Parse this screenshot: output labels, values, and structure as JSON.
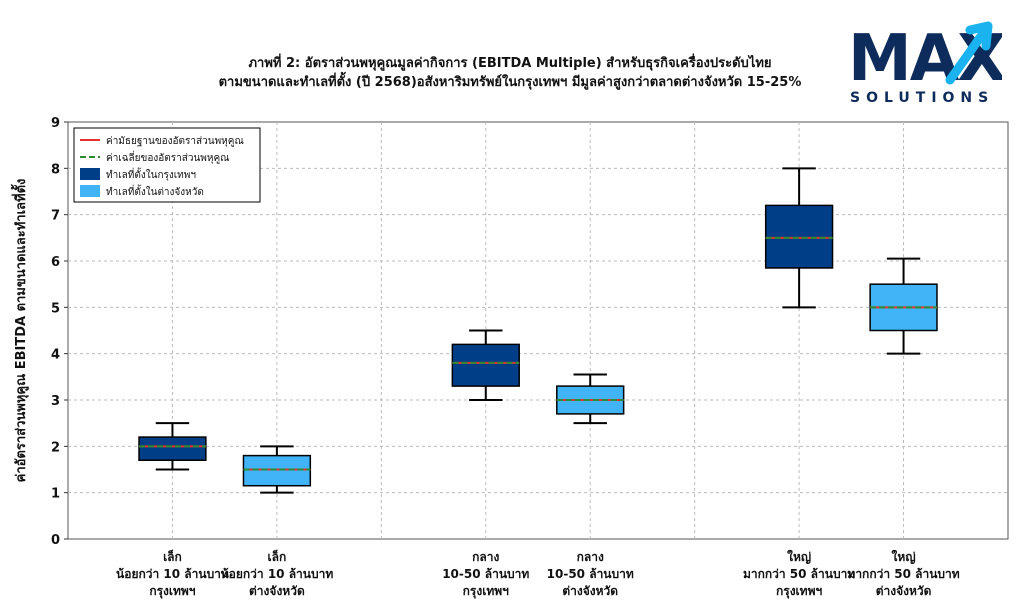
{
  "title_line1": "ภาพที่ 2: อัตราส่วนพหุคูณมูลค่ากิจการ (EBITDA Multiple) สำหรับธุรกิจเครื่องประดับไทย",
  "title_line2": "ตามขนาดและทำเลที่ตั้ง (ปี 2568)อสังหาริมทรัพย์ในกรุงเทพฯ มีมูลค่าสูงกว่าตลาดต่างจังหวัด 15-25%",
  "logo": {
    "word": "MAX",
    "sub": "SOLUTIONS",
    "colors": {
      "dark": "#0d2c5c",
      "accent": "#1ab2ef"
    }
  },
  "colors": {
    "bangkok": "#003f88",
    "province": "#40b4f7",
    "median": "#e8312b",
    "mean": "#2e8b30"
  },
  "chart_data": {
    "type": "box",
    "ylabel": "ค่าอัตราส่วนพหุคูณ EBITDA ตามขนาดและทำเลที่ตั้ง",
    "ylim": [
      0,
      9
    ],
    "yticks": [
      "0",
      "1",
      "2",
      "3",
      "4",
      "5",
      "6",
      "7",
      "8",
      "9"
    ],
    "grid": true,
    "legend_position": "top-left",
    "legend": [
      {
        "label": "ค่ามัธยฐานของอัตราส่วนพหุคูณ",
        "kind": "median"
      },
      {
        "label": "ค่าเฉลี่ยของอัตราส่วนพหุคูณ",
        "kind": "mean"
      },
      {
        "label": "ทำเลที่ตั้งในกรุงเทพฯ",
        "kind": "bangkok"
      },
      {
        "label": "ทำเลที่ตั้งในต่างจังหวัด",
        "kind": "province"
      }
    ],
    "boxes": [
      {
        "label": [
          "เล็ก",
          "น้อยกว่า 10 ล้านบาท",
          "กรุงเทพฯ"
        ],
        "group": "bangkok",
        "position": 1,
        "min": 1.5,
        "q1": 1.7,
        "median": 2.0,
        "mean": 2.0,
        "q3": 2.2,
        "max": 2.5
      },
      {
        "label": [
          "เล็ก",
          "น้อยกว่า 10 ล้านบาท",
          "ต่างจังหวัด"
        ],
        "group": "province",
        "position": 2,
        "min": 1.0,
        "q1": 1.15,
        "median": 1.5,
        "mean": 1.5,
        "q3": 1.8,
        "max": 2.0
      },
      {
        "label": [
          "กลาง",
          "10-50 ล้านบาท",
          "กรุงเทพฯ"
        ],
        "group": "bangkok",
        "position": 4,
        "min": 3.0,
        "q1": 3.3,
        "median": 3.8,
        "mean": 3.8,
        "q3": 4.2,
        "max": 4.5
      },
      {
        "label": [
          "กลาง",
          "10-50 ล้านบาท",
          "ต่างจังหวัด"
        ],
        "group": "province",
        "position": 5,
        "min": 2.5,
        "q1": 2.7,
        "median": 3.0,
        "mean": 3.0,
        "q3": 3.3,
        "max": 3.55
      },
      {
        "label": [
          "ใหญ่",
          "มากกว่า 50 ล้านบาท",
          "กรุงเทพฯ"
        ],
        "group": "bangkok",
        "position": 7,
        "min": 5.0,
        "q1": 5.85,
        "median": 6.5,
        "mean": 6.5,
        "q3": 7.2,
        "max": 8.0
      },
      {
        "label": [
          "ใหญ่",
          "มากกว่า 50 ล้านบาท",
          "ต่างจังหวัด"
        ],
        "group": "province",
        "position": 8,
        "min": 4.0,
        "q1": 4.5,
        "median": 5.0,
        "mean": 5.0,
        "q3": 5.5,
        "max": 6.05
      }
    ]
  }
}
